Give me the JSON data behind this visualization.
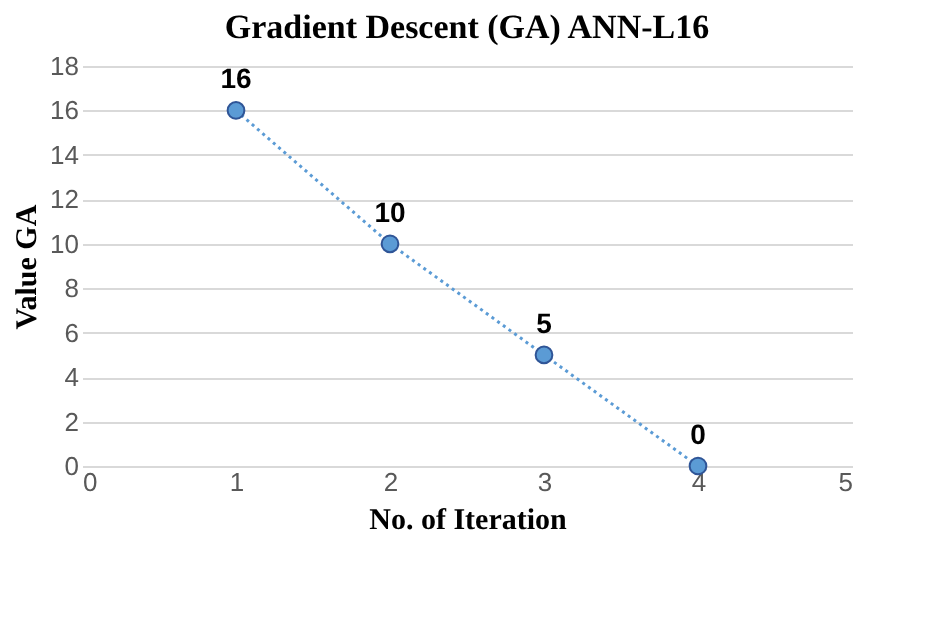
{
  "chart_data": {
    "type": "line",
    "title": "Gradient Descent (GA) ANN-L16",
    "xlabel": "No. of Iteration",
    "ylabel": "Value GA",
    "x": [
      1,
      2,
      3,
      4
    ],
    "series": [
      {
        "color": "#5b9bd5",
        "values": [
          16,
          10,
          5,
          0
        ]
      }
    ],
    "xlim": [
      0,
      5
    ],
    "xticks": [
      0,
      1,
      2,
      3,
      4,
      5
    ],
    "ylim": [
      0,
      18
    ],
    "yticks": [
      0,
      2,
      4,
      6,
      8,
      10,
      12,
      14,
      16,
      18
    ],
    "grid": "y",
    "marker": "circle",
    "line_style": "dotted",
    "data_labels": true
  }
}
